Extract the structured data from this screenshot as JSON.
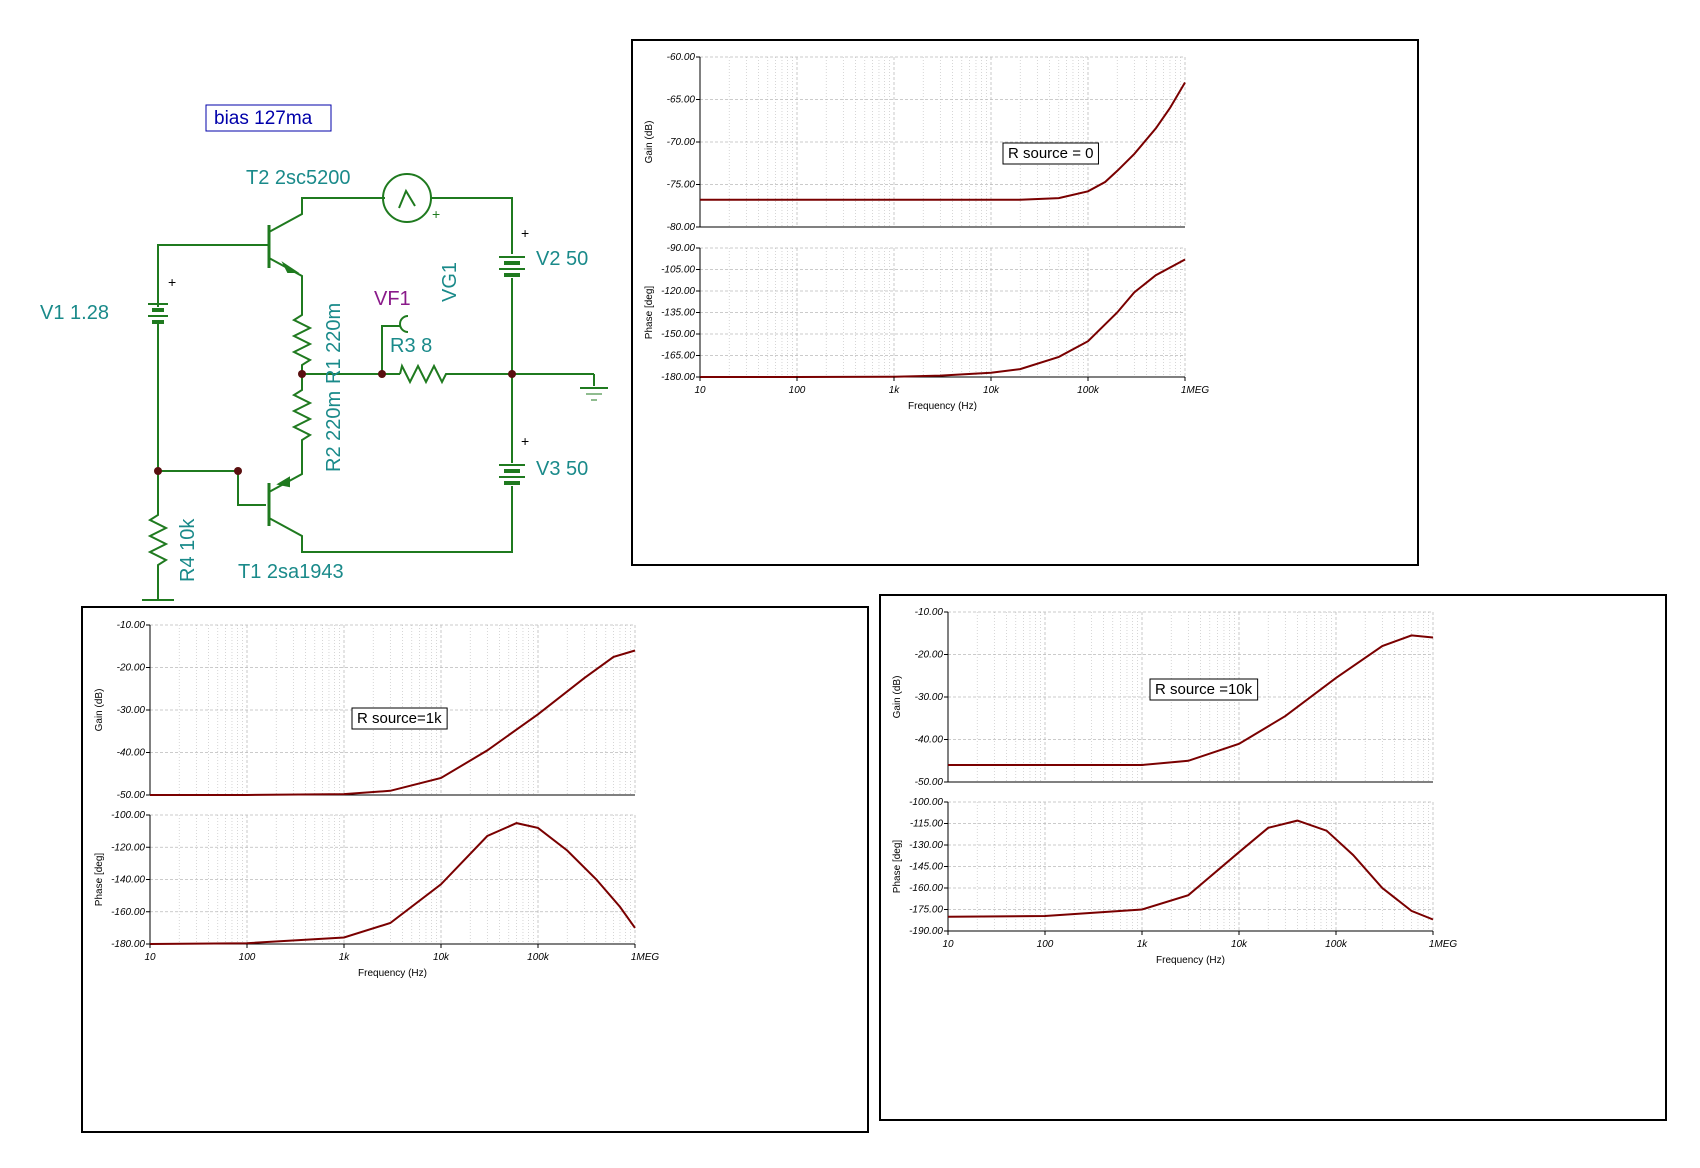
{
  "schematic": {
    "bias_note": "bias 127ma",
    "labels": {
      "t2": "T2 2sc5200",
      "t1": "T1 2sa1943",
      "v1": "V1 1.28",
      "v2": "V2 50",
      "v3": "V3 50",
      "vg1": "VG1",
      "vf1": "VF1",
      "r3": "R3 8",
      "r1": "R1 220m",
      "r2": "R2 220m",
      "r4": "R4 10k"
    },
    "colors": {
      "wire": "#1f7a1f",
      "label": "#1a8a8a",
      "probe": "#8a1a8a",
      "note": "#0000aa"
    }
  },
  "chart_data": [
    {
      "type": "line",
      "annotation": "R source = 0",
      "xlabel": "Frequency (Hz)",
      "x_scale": "log",
      "x_ticks": [
        "10",
        "100",
        "1k",
        "10k",
        "100k",
        "1MEG"
      ],
      "gain": {
        "ylabel": "Gain (dB)",
        "ylim": [
          -80,
          -60
        ],
        "y_ticks": [
          "-60.00",
          "-65.00",
          "-70.00",
          "-75.00",
          "-80.00"
        ],
        "x": [
          10,
          100,
          1000,
          10000,
          20000,
          50000,
          100000,
          150000,
          200000,
          300000,
          500000,
          700000,
          1000000
        ],
        "y": [
          -76.8,
          -76.8,
          -76.8,
          -76.8,
          -76.8,
          -76.6,
          -75.8,
          -74.7,
          -73.4,
          -71.4,
          -68.4,
          -66.0,
          -63.0
        ]
      },
      "phase": {
        "ylabel": "Phase [deg]",
        "ylim": [
          -180,
          -90
        ],
        "y_ticks": [
          "-90.00",
          "-105.00",
          "-120.00",
          "-135.00",
          "-150.00",
          "-165.00",
          "-180.00"
        ],
        "x": [
          10,
          100,
          1000,
          3000,
          10000,
          20000,
          50000,
          100000,
          200000,
          300000,
          500000,
          1000000
        ],
        "y": [
          -180,
          -180,
          -179.8,
          -179,
          -177,
          -174.5,
          -166,
          -155,
          -135,
          -121,
          -109,
          -98
        ]
      },
      "line_color": "#7a0000"
    },
    {
      "type": "line",
      "annotation": "R source=1k",
      "xlabel": "Frequency (Hz)",
      "x_scale": "log",
      "x_ticks": [
        "10",
        "100",
        "1k",
        "10k",
        "100k",
        "1MEG"
      ],
      "gain": {
        "ylabel": "Gain (dB)",
        "ylim": [
          -50,
          -10
        ],
        "y_ticks": [
          "-10.00",
          "-20.00",
          "-30.00",
          "-40.00",
          "-50.00"
        ],
        "x": [
          10,
          100,
          1000,
          3000,
          10000,
          30000,
          100000,
          300000,
          600000,
          1000000
        ],
        "y": [
          -50,
          -50,
          -49.8,
          -49,
          -46,
          -39.5,
          -31,
          -22.5,
          -17.5,
          -16
        ]
      },
      "phase": {
        "ylabel": "Phase [deg]",
        "ylim": [
          -180,
          -100
        ],
        "y_ticks": [
          "-100.00",
          "-120.00",
          "-140.00",
          "-160.00",
          "-180.00"
        ],
        "x": [
          10,
          100,
          1000,
          3000,
          10000,
          30000,
          60000,
          100000,
          200000,
          400000,
          700000,
          1000000
        ],
        "y": [
          -180,
          -179.5,
          -176,
          -167,
          -143,
          -113,
          -105,
          -108,
          -122,
          -140,
          -157,
          -170
        ]
      },
      "line_color": "#7a0000"
    },
    {
      "type": "line",
      "annotation": "R source =10k",
      "xlabel": "Frequency (Hz)",
      "x_scale": "log",
      "x_ticks": [
        "10",
        "100",
        "1k",
        "10k",
        "100k",
        "1MEG"
      ],
      "gain": {
        "ylabel": "Gain (dB)",
        "ylim": [
          -50,
          -10
        ],
        "y_ticks": [
          "-10.00",
          "-20.00",
          "-30.00",
          "-40.00",
          "-50.00"
        ],
        "x": [
          10,
          100,
          1000,
          3000,
          10000,
          30000,
          100000,
          300000,
          600000,
          1000000
        ],
        "y": [
          -46,
          -46,
          -46,
          -45,
          -41,
          -34.5,
          -25.5,
          -18,
          -15.5,
          -16
        ]
      },
      "phase": {
        "ylabel": "Phase [deg]",
        "ylim": [
          -190,
          -100
        ],
        "y_ticks": [
          "-100.00",
          "-115.00",
          "-130.00",
          "-145.00",
          "-160.00",
          "-175.00",
          "-190.00"
        ],
        "x": [
          10,
          100,
          1000,
          3000,
          10000,
          20000,
          40000,
          80000,
          150000,
          300000,
          600000,
          1000000
        ],
        "y": [
          -180,
          -179.5,
          -175,
          -165,
          -135,
          -118,
          -113,
          -120,
          -137,
          -160,
          -176,
          -182
        ]
      },
      "line_color": "#7a0000"
    }
  ]
}
